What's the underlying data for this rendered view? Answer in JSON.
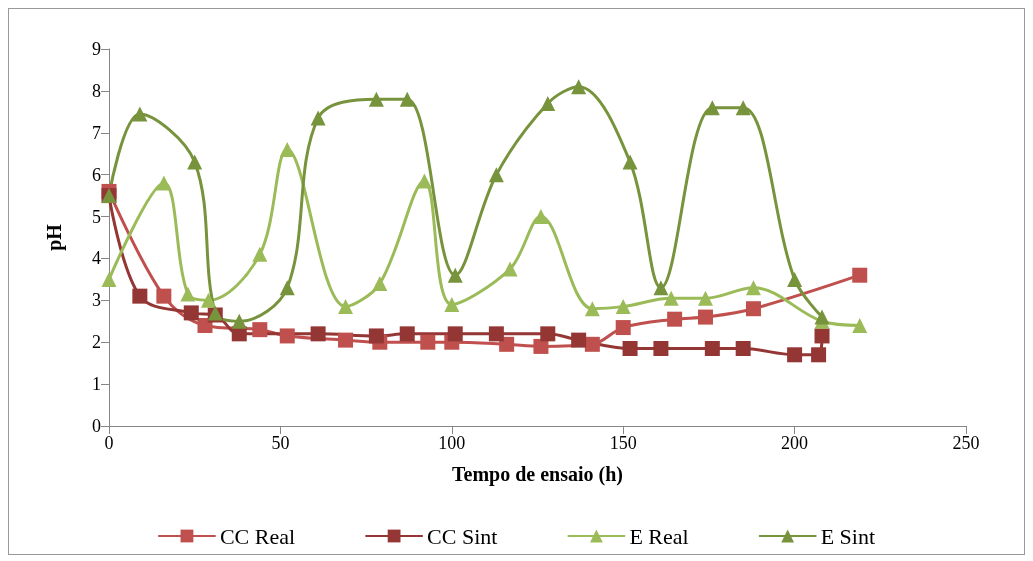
{
  "chart_data": {
    "type": "line",
    "xlabel": "Tempo de ensaio (h)",
    "ylabel": "pH",
    "xlim": [
      0,
      250
    ],
    "xticks": [
      0,
      50,
      100,
      150,
      200,
      250
    ],
    "ylim": [
      0,
      9
    ],
    "yticks": [
      0,
      1,
      2,
      3,
      4,
      5,
      6,
      7,
      8,
      9
    ],
    "grid": false,
    "legend": "bottom",
    "line_style": "solid",
    "series": [
      {
        "name": "CC Real",
        "color": "#c0504d",
        "marker": "square",
        "x": [
          0,
          16,
          28,
          44,
          52,
          69,
          79,
          93,
          100,
          116,
          126,
          141,
          150,
          165,
          174,
          188,
          219
        ],
        "values": [
          5.6,
          3.1,
          2.4,
          2.3,
          2.15,
          2.05,
          2.0,
          2.0,
          2.0,
          1.95,
          1.9,
          1.95,
          2.35,
          2.55,
          2.6,
          2.8,
          3.6
        ]
      },
      {
        "name": "CC Sint",
        "color": "#943634",
        "marker": "square",
        "x": [
          0,
          9,
          24,
          31,
          38,
          61,
          78,
          87,
          101,
          113,
          128,
          137,
          152,
          161,
          176,
          185,
          200,
          207,
          208
        ],
        "values": [
          5.5,
          3.1,
          2.7,
          2.65,
          2.2,
          2.2,
          2.15,
          2.2,
          2.2,
          2.2,
          2.2,
          2.05,
          1.85,
          1.85,
          1.85,
          1.85,
          1.7,
          1.7,
          2.15
        ]
      },
      {
        "name": "E Real",
        "color": "#9bbb59",
        "marker": "triangle",
        "x": [
          0,
          16,
          23,
          29,
          44,
          52,
          69,
          79,
          92,
          100,
          117,
          126,
          141,
          150,
          164,
          174,
          188,
          208,
          219
        ],
        "values": [
          3.5,
          5.8,
          3.15,
          3.0,
          4.1,
          6.6,
          2.85,
          3.4,
          5.85,
          2.9,
          3.75,
          5.0,
          2.8,
          2.85,
          3.05,
          3.05,
          3.3,
          2.5,
          2.4
        ]
      },
      {
        "name": "E Sint",
        "color": "#77933c",
        "marker": "triangle",
        "x": [
          0,
          9,
          25,
          31,
          38,
          52,
          61,
          78,
          87,
          101,
          113,
          128,
          137,
          152,
          161,
          176,
          185,
          200,
          208
        ],
        "values": [
          5.5,
          7.45,
          6.3,
          2.7,
          2.5,
          3.3,
          7.35,
          7.8,
          7.8,
          3.6,
          6.0,
          7.7,
          8.1,
          6.3,
          3.3,
          7.6,
          7.6,
          3.5,
          2.6
        ]
      }
    ]
  }
}
